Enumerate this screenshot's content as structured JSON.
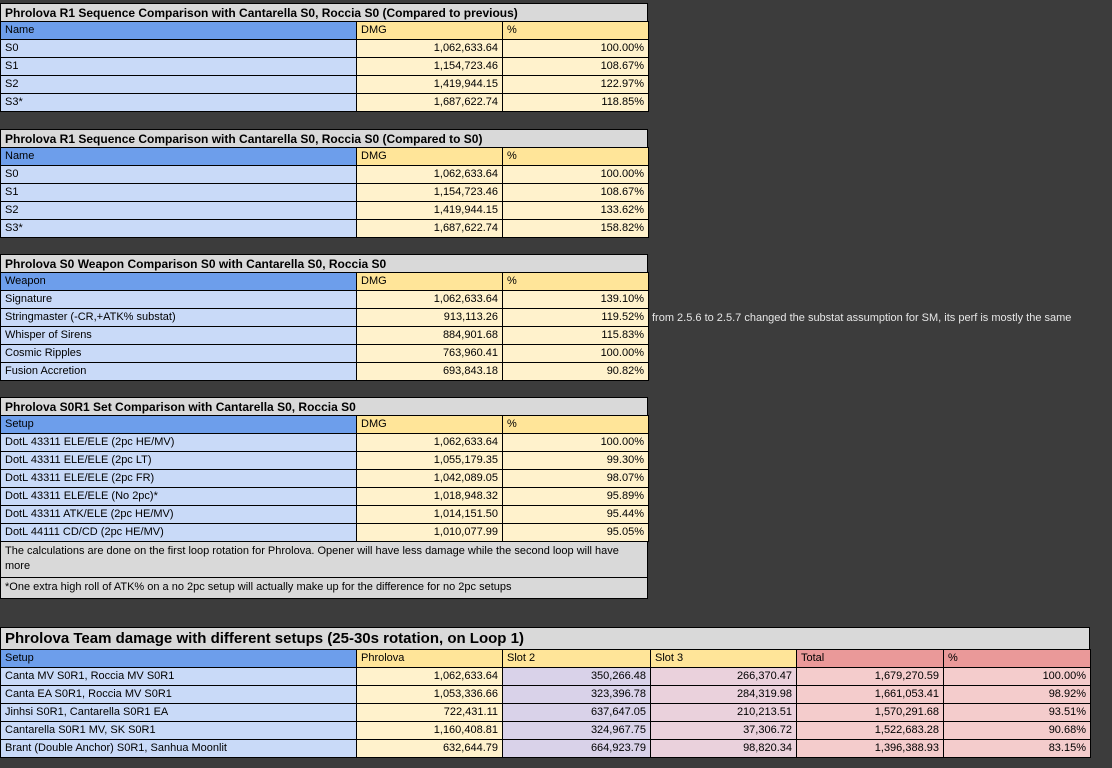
{
  "palette": {
    "page_bg": "#3c3c3c",
    "title_bg": "#d9d9d9",
    "note_bg": "#d9d9d9",
    "header_blue": "#6d9eeb",
    "header_yellow": "#ffe599",
    "header_red": "#ea9999",
    "cell_blue": "#c9daf8",
    "cell_yellow": "#fff2cc",
    "cell_purple": "#d9d2e9",
    "cell_magenta": "#ead1dc",
    "cell_pink": "#f4cccc"
  },
  "small_tables": [
    {
      "title": "Phrolova R1 Sequence Comparison with Cantarella S0, Roccia S0 (Compared to previous)",
      "columns": [
        "Name",
        "DMG",
        "%"
      ],
      "rows": [
        [
          "S0",
          "1,062,633.64",
          "100.00%"
        ],
        [
          "S1",
          "1,154,723.46",
          "108.67%"
        ],
        [
          "S2",
          "1,419,944.15",
          "122.97%"
        ],
        [
          "S3*",
          "1,687,622.74",
          "118.85%"
        ]
      ]
    },
    {
      "title": "Phrolova R1 Sequence Comparison with Cantarella S0, Roccia S0 (Compared to S0)",
      "columns": [
        "Name",
        "DMG",
        "%"
      ],
      "rows": [
        [
          "S0",
          "1,062,633.64",
          "100.00%"
        ],
        [
          "S1",
          "1,154,723.46",
          "108.67%"
        ],
        [
          "S2",
          "1,419,944.15",
          "133.62%"
        ],
        [
          "S3*",
          "1,687,622.74",
          "158.82%"
        ]
      ]
    },
    {
      "title": "Phrolova S0 Weapon Comparison S0 with Cantarella S0, Roccia S0",
      "columns": [
        "Weapon",
        "DMG",
        "%"
      ],
      "rows": [
        [
          "Signature",
          "1,062,633.64",
          "139.10%"
        ],
        [
          "Stringmaster (-CR,+ATK% substat)",
          "913,113.26",
          "119.52%"
        ],
        [
          "Whisper of Sirens",
          "884,901.68",
          "115.83%"
        ],
        [
          "Cosmic Ripples",
          "763,960.41",
          "100.00%"
        ],
        [
          "Fusion Accretion",
          "693,843.18",
          "90.82%"
        ]
      ]
    },
    {
      "title": "Phrolova S0R1 Set Comparison with Cantarella S0, Roccia S0",
      "columns": [
        "Setup",
        "DMG",
        "%"
      ],
      "rows": [
        [
          "DotL 43311 ELE/ELE (2pc HE/MV)",
          "1,062,633.64",
          "100.00%"
        ],
        [
          "DotL 43311 ELE/ELE (2pc LT)",
          "1,055,179.35",
          "99.30%"
        ],
        [
          "DotL 43311 ELE/ELE (2pc FR)",
          "1,042,089.05",
          "98.07%"
        ],
        [
          "DotL 43311 ELE/ELE (No 2pc)*",
          "1,018,948.32",
          "95.89%"
        ],
        [
          "DotL 43311 ATK/ELE (2pc HE/MV)",
          "1,014,151.50",
          "95.44%"
        ],
        [
          "DotL 44111 CD/CD (2pc HE/MV)",
          "1,010,077.99",
          "95.05%"
        ]
      ],
      "notes": [
        "The calculations are done on the first loop rotation for Phrolova. Opener will have less damage while the second loop will have more",
        "*One extra high roll of ATK% on a no 2pc setup will actually make up for the difference for no 2pc setups"
      ]
    }
  ],
  "side_note": "from 2.5.6 to 2.5.7 changed the substat assumption for SM, its perf is mostly the same",
  "team_table": {
    "title": "Phrolova Team damage with different setups (25-30s rotation, on Loop 1)",
    "columns": [
      "Setup",
      "Phrolova",
      "Slot 2",
      "Slot 3",
      "Total",
      "%"
    ],
    "rows": [
      [
        "Canta MV S0R1, Roccia MV S0R1",
        "1,062,633.64",
        "350,266.48",
        "266,370.47",
        "1,679,270.59",
        "100.00%"
      ],
      [
        "Canta EA S0R1, Roccia MV S0R1",
        "1,053,336.66",
        "323,396.78",
        "284,319.98",
        "1,661,053.41",
        "98.92%"
      ],
      [
        "Jinhsi S0R1, Cantarella S0R1 EA",
        "722,431.11",
        "637,647.05",
        "210,213.51",
        "1,570,291.68",
        "93.51%"
      ],
      [
        "Cantarella S0R1 MV, SK S0R1",
        "1,160,408.81",
        "324,967.75",
        "37,306.72",
        "1,522,683.28",
        "90.68%"
      ],
      [
        "Brant (Double Anchor) S0R1, Sanhua Moonlit",
        "632,644.79",
        "664,923.79",
        "98,820.34",
        "1,396,388.93",
        "83.15%"
      ]
    ]
  }
}
